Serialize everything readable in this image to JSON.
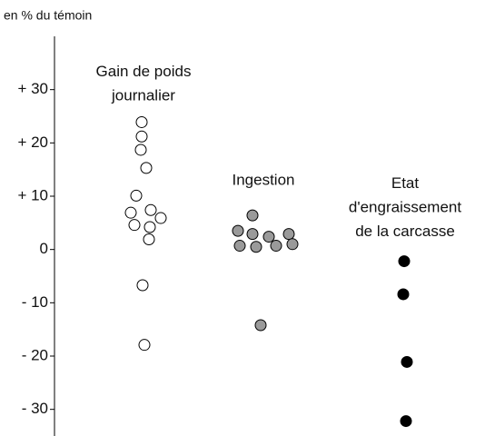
{
  "chart_data": {
    "type": "strip",
    "ylabel": "en % du témoin",
    "ylim": [
      -35,
      40
    ],
    "yticks": [
      {
        "value": 30,
        "label": "+ 30"
      },
      {
        "value": 20,
        "label": "+ 20"
      },
      {
        "value": 10,
        "label": "+ 10"
      },
      0,
      {
        "value": -10,
        "label": "- 10"
      },
      {
        "value": -20,
        "label": "- 20"
      },
      {
        "value": -30,
        "label": "- 30"
      }
    ],
    "groups": [
      {
        "label": "Gain de poids\njournalier",
        "fill": "#ffffff",
        "stroke": "#000000",
        "values": [
          23.9,
          21.2,
          18.7,
          15.3,
          10.1,
          7.4,
          6.9,
          5.9,
          4.6,
          4.2,
          1.9,
          -6.7,
          -17.9
        ]
      },
      {
        "label": "Ingestion",
        "fill": "#9a9a9a",
        "stroke": "#000000",
        "values": [
          6.4,
          3.5,
          2.9,
          2.4,
          2.9,
          0.7,
          0.5,
          0.7,
          1.0,
          -14.2
        ]
      },
      {
        "label": "Etat\nd'engraissement\nde la carcasse",
        "fill": "#000000",
        "stroke": "#000000",
        "values": [
          -2.2,
          -8.4,
          -21.1,
          -32.2
        ]
      }
    ]
  }
}
